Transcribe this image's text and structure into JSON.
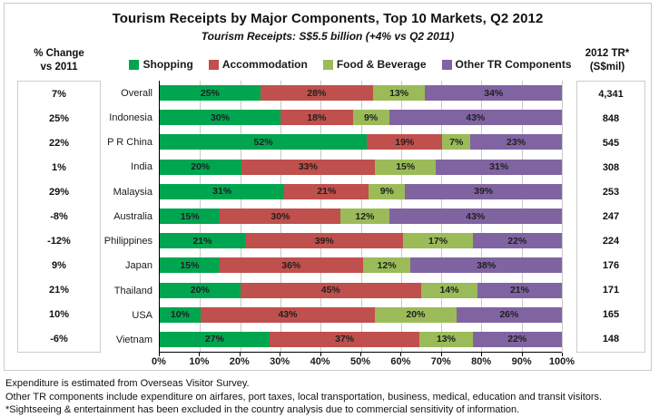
{
  "title": "Tourism Receipts by Major Components,  Top 10 Markets, Q2 2012",
  "subtitle": "Tourism Receipts: S$5.5 billion (+4% vs Q2 2011)",
  "left_header": {
    "line1": "% Change",
    "line2": "vs 2011"
  },
  "right_header": {
    "line1": "2012 TR*",
    "line2": "(S$mil)"
  },
  "legend": [
    {
      "label": "Shopping",
      "color": "#00a550"
    },
    {
      "label": "Accommodation",
      "color": "#c0504d"
    },
    {
      "label": "Food & Beverage",
      "color": "#9bbb59"
    },
    {
      "label": "Other TR Components",
      "color": "#8064a2"
    }
  ],
  "chart_data": {
    "type": "bar",
    "stacked": true,
    "orientation": "horizontal",
    "series_names": [
      "Shopping",
      "Accommodation",
      "Food & Beverage",
      "Other TR Components"
    ],
    "series_colors": [
      "#00a550",
      "#c0504d",
      "#9bbb59",
      "#8064a2"
    ],
    "categories": [
      "Overall",
      "Indonesia",
      "P R China",
      "India",
      "Malaysia",
      "Australia",
      "Philippines",
      "Japan",
      "Thailand",
      "USA",
      "Vietnam"
    ],
    "rows": [
      {
        "category": "Overall",
        "pct_change": "7%",
        "values": [
          25,
          28,
          13,
          34
        ],
        "labels": [
          "25%",
          "28%",
          "13%",
          "34%"
        ],
        "tr_2012": "4,341"
      },
      {
        "category": "Indonesia",
        "pct_change": "25%",
        "values": [
          30,
          18,
          9,
          43
        ],
        "labels": [
          "30%",
          "18%",
          "9%",
          "43%"
        ],
        "tr_2012": "848"
      },
      {
        "category": "P R China",
        "pct_change": "22%",
        "values": [
          52,
          19,
          7,
          23
        ],
        "labels": [
          "52%",
          "19%",
          "7%",
          "23%"
        ],
        "tr_2012": "545"
      },
      {
        "category": "India",
        "pct_change": "1%",
        "values": [
          20,
          33,
          15,
          31
        ],
        "labels": [
          "20%",
          "33%",
          "15%",
          "31%"
        ],
        "tr_2012": "308"
      },
      {
        "category": "Malaysia",
        "pct_change": "29%",
        "values": [
          31,
          21,
          9,
          39
        ],
        "labels": [
          "31%",
          "21%",
          "9%",
          "39%"
        ],
        "tr_2012": "253"
      },
      {
        "category": "Australia",
        "pct_change": "-8%",
        "values": [
          15,
          30,
          12,
          43
        ],
        "labels": [
          "15%",
          "30%",
          "12%",
          "43%"
        ],
        "tr_2012": "247"
      },
      {
        "category": "Philippines",
        "pct_change": "-12%",
        "values": [
          21,
          39,
          17,
          22
        ],
        "labels": [
          "21%",
          "39%",
          "17%",
          "22%"
        ],
        "tr_2012": "224"
      },
      {
        "category": "Japan",
        "pct_change": "9%",
        "values": [
          15,
          36,
          12,
          38
        ],
        "labels": [
          "15%",
          "36%",
          "12%",
          "38%"
        ],
        "tr_2012": "176"
      },
      {
        "category": "Thailand",
        "pct_change": "21%",
        "values": [
          20,
          45,
          14,
          21
        ],
        "labels": [
          "20%",
          "45%",
          "14%",
          "21%"
        ],
        "tr_2012": "171"
      },
      {
        "category": "USA",
        "pct_change": "10%",
        "values": [
          10,
          43,
          20,
          26
        ],
        "labels": [
          "10%",
          "43%",
          "20%",
          "26%"
        ],
        "tr_2012": "165"
      },
      {
        "category": "Vietnam",
        "pct_change": "-6%",
        "values": [
          27,
          37,
          13,
          22
        ],
        "labels": [
          "27%",
          "37%",
          "13%",
          "22%"
        ],
        "tr_2012": "148"
      }
    ],
    "x_ticks": [
      "0%",
      "10%",
      "20%",
      "30%",
      "40%",
      "50%",
      "60%",
      "70%",
      "80%",
      "90%",
      "100%"
    ],
    "x_range": [
      0,
      100
    ],
    "grid": true,
    "legend_position": "top"
  },
  "footnotes": [
    "Expenditure is estimated  from Overseas Visitor Survey.",
    "Other TR components include expenditure on airfares, port taxes, local transportation,  business, medical, education and transit visitors.",
    "*Sightseeing &  entertainment has been excluded in the country analysis   due to commercial sensitivity  of information."
  ]
}
